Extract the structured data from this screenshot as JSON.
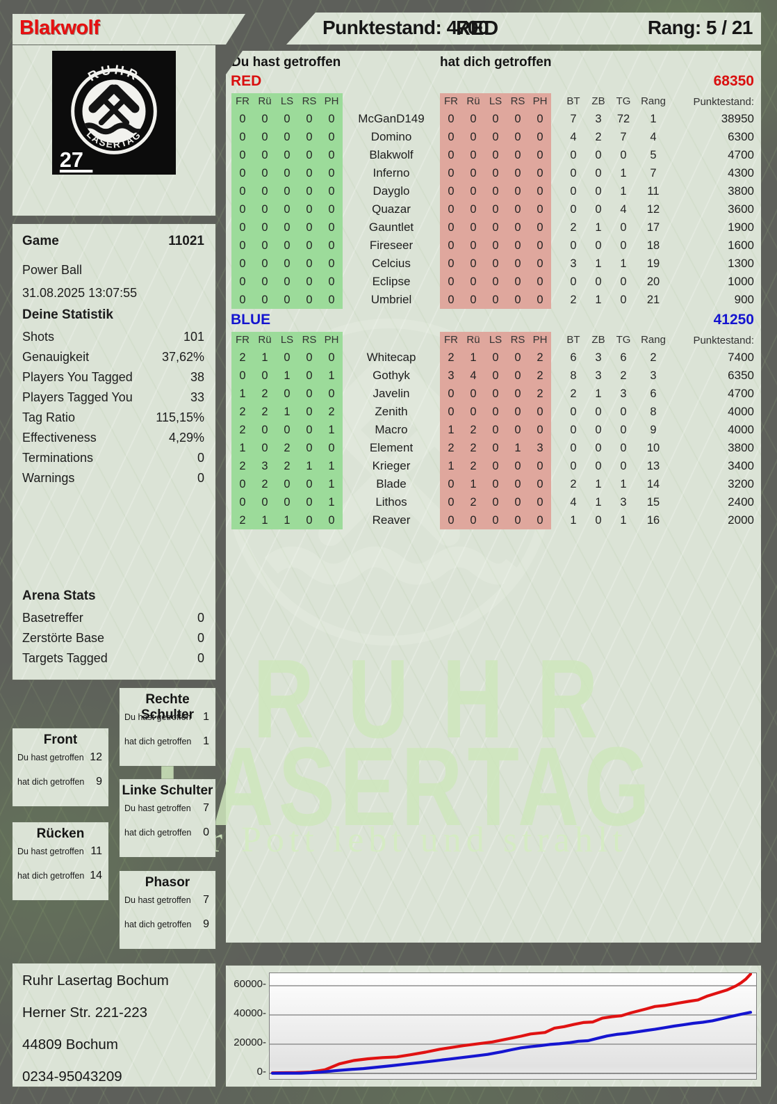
{
  "header": {
    "player": "Blakwolf",
    "score_label": "Punktestand: 4700",
    "team": "RED",
    "rank_label": "Rang: 5 / 21"
  },
  "labels": {
    "you": "Du hast getroffen",
    "them": "hat dich getroffen"
  },
  "logo": {
    "arc_top": "RUHR",
    "arc_bottom": "LASERTAG",
    "number": "27"
  },
  "game": {
    "label": "Game",
    "id": "11021",
    "mode": "Power Ball",
    "datetime": "31.08.2025 13:07:55"
  },
  "your_stats": {
    "title": "Deine Statistik",
    "rows": [
      {
        "label": "Shots",
        "value": "101"
      },
      {
        "label": "Genauigkeit",
        "value": "37,62%"
      },
      {
        "label": "Players You Tagged",
        "value": "38"
      },
      {
        "label": "Players Tagged You",
        "value": "33"
      },
      {
        "label": "Tag Ratio",
        "value": "115,15%"
      },
      {
        "label": "Effectiveness",
        "value": "4,29%"
      },
      {
        "label": "Terminations",
        "value": "0"
      },
      {
        "label": "Warnings",
        "value": "0"
      }
    ]
  },
  "arena_stats": {
    "title": "Arena Stats",
    "rows": [
      {
        "label": "Basetreffer",
        "value": "0"
      },
      {
        "label": "Zerstörte Base",
        "value": "0"
      },
      {
        "label": "Targets Tagged",
        "value": "0"
      }
    ]
  },
  "hitboxes": [
    {
      "title": "Front",
      "you": "12",
      "them": "9"
    },
    {
      "title": "Rücken",
      "you": "11",
      "them": "14"
    },
    {
      "title": "Rechte Schulter",
      "you": "1",
      "them": "1"
    },
    {
      "title": "Linke Schulter",
      "you": "7",
      "them": "0"
    },
    {
      "title": "Phasor",
      "you": "7",
      "them": "9"
    }
  ],
  "table": {
    "hit_cols": [
      "FR",
      "Rü",
      "LS",
      "RS",
      "PH"
    ],
    "tail_cols": [
      "BT",
      "ZB",
      "TG",
      "Rang"
    ],
    "score_col": "Punktestand:"
  },
  "teams": [
    {
      "name": "RED",
      "color": "#d90f0f",
      "total": "68350",
      "rows": [
        {
          "you": [
            "0",
            "0",
            "0",
            "0",
            "0"
          ],
          "name": "McGanD149",
          "them": [
            "0",
            "0",
            "0",
            "0",
            "0"
          ],
          "tail": [
            "7",
            "3",
            "72",
            "1"
          ],
          "score": "38950"
        },
        {
          "you": [
            "0",
            "0",
            "0",
            "0",
            "0"
          ],
          "name": "Domino",
          "them": [
            "0",
            "0",
            "0",
            "0",
            "0"
          ],
          "tail": [
            "4",
            "2",
            "7",
            "4"
          ],
          "score": "6300"
        },
        {
          "you": [
            "0",
            "0",
            "0",
            "0",
            "0"
          ],
          "name": "Blakwolf",
          "them": [
            "0",
            "0",
            "0",
            "0",
            "0"
          ],
          "tail": [
            "0",
            "0",
            "0",
            "5"
          ],
          "score": "4700"
        },
        {
          "you": [
            "0",
            "0",
            "0",
            "0",
            "0"
          ],
          "name": "Inferno",
          "them": [
            "0",
            "0",
            "0",
            "0",
            "0"
          ],
          "tail": [
            "0",
            "0",
            "1",
            "7"
          ],
          "score": "4300"
        },
        {
          "you": [
            "0",
            "0",
            "0",
            "0",
            "0"
          ],
          "name": "Dayglo",
          "them": [
            "0",
            "0",
            "0",
            "0",
            "0"
          ],
          "tail": [
            "0",
            "0",
            "1",
            "11"
          ],
          "score": "3800"
        },
        {
          "you": [
            "0",
            "0",
            "0",
            "0",
            "0"
          ],
          "name": "Quazar",
          "them": [
            "0",
            "0",
            "0",
            "0",
            "0"
          ],
          "tail": [
            "0",
            "0",
            "4",
            "12"
          ],
          "score": "3600"
        },
        {
          "you": [
            "0",
            "0",
            "0",
            "0",
            "0"
          ],
          "name": "Gauntlet",
          "them": [
            "0",
            "0",
            "0",
            "0",
            "0"
          ],
          "tail": [
            "2",
            "1",
            "0",
            "17"
          ],
          "score": "1900"
        },
        {
          "you": [
            "0",
            "0",
            "0",
            "0",
            "0"
          ],
          "name": "Fireseer",
          "them": [
            "0",
            "0",
            "0",
            "0",
            "0"
          ],
          "tail": [
            "0",
            "0",
            "0",
            "18"
          ],
          "score": "1600"
        },
        {
          "you": [
            "0",
            "0",
            "0",
            "0",
            "0"
          ],
          "name": "Celcius",
          "them": [
            "0",
            "0",
            "0",
            "0",
            "0"
          ],
          "tail": [
            "3",
            "1",
            "1",
            "19"
          ],
          "score": "1300"
        },
        {
          "you": [
            "0",
            "0",
            "0",
            "0",
            "0"
          ],
          "name": "Eclipse",
          "them": [
            "0",
            "0",
            "0",
            "0",
            "0"
          ],
          "tail": [
            "0",
            "0",
            "0",
            "20"
          ],
          "score": "1000"
        },
        {
          "you": [
            "0",
            "0",
            "0",
            "0",
            "0"
          ],
          "name": "Umbriel",
          "them": [
            "0",
            "0",
            "0",
            "0",
            "0"
          ],
          "tail": [
            "2",
            "1",
            "0",
            "21"
          ],
          "score": "900"
        }
      ]
    },
    {
      "name": "BLUE",
      "color": "#1414cf",
      "total": "41250",
      "rows": [
        {
          "you": [
            "2",
            "1",
            "0",
            "0",
            "0"
          ],
          "name": "Whitecap",
          "them": [
            "2",
            "1",
            "0",
            "0",
            "2"
          ],
          "tail": [
            "6",
            "3",
            "6",
            "2"
          ],
          "score": "7400"
        },
        {
          "you": [
            "0",
            "0",
            "1",
            "0",
            "1"
          ],
          "name": "Gothyk",
          "them": [
            "3",
            "4",
            "0",
            "0",
            "2"
          ],
          "tail": [
            "8",
            "3",
            "2",
            "3"
          ],
          "score": "6350"
        },
        {
          "you": [
            "1",
            "2",
            "0",
            "0",
            "0"
          ],
          "name": "Javelin",
          "them": [
            "0",
            "0",
            "0",
            "0",
            "2"
          ],
          "tail": [
            "2",
            "1",
            "3",
            "6"
          ],
          "score": "4700"
        },
        {
          "you": [
            "2",
            "2",
            "1",
            "0",
            "2"
          ],
          "name": "Zenith",
          "them": [
            "0",
            "0",
            "0",
            "0",
            "0"
          ],
          "tail": [
            "0",
            "0",
            "0",
            "8"
          ],
          "score": "4000"
        },
        {
          "you": [
            "2",
            "0",
            "0",
            "0",
            "1"
          ],
          "name": "Macro",
          "them": [
            "1",
            "2",
            "0",
            "0",
            "0"
          ],
          "tail": [
            "0",
            "0",
            "0",
            "9"
          ],
          "score": "4000"
        },
        {
          "you": [
            "1",
            "0",
            "2",
            "0",
            "0"
          ],
          "name": "Element",
          "them": [
            "2",
            "2",
            "0",
            "1",
            "3"
          ],
          "tail": [
            "0",
            "0",
            "0",
            "10"
          ],
          "score": "3800"
        },
        {
          "you": [
            "2",
            "3",
            "2",
            "1",
            "1"
          ],
          "name": "Krieger",
          "them": [
            "1",
            "2",
            "0",
            "0",
            "0"
          ],
          "tail": [
            "0",
            "0",
            "0",
            "13"
          ],
          "score": "3400"
        },
        {
          "you": [
            "0",
            "2",
            "0",
            "0",
            "1"
          ],
          "name": "Blade",
          "them": [
            "0",
            "1",
            "0",
            "0",
            "0"
          ],
          "tail": [
            "2",
            "1",
            "1",
            "14"
          ],
          "score": "3200"
        },
        {
          "you": [
            "0",
            "0",
            "0",
            "0",
            "1"
          ],
          "name": "Lithos",
          "them": [
            "0",
            "2",
            "0",
            "0",
            "0"
          ],
          "tail": [
            "4",
            "1",
            "3",
            "15"
          ],
          "score": "2400"
        },
        {
          "you": [
            "2",
            "1",
            "1",
            "0",
            "0"
          ],
          "name": "Reaver",
          "them": [
            "0",
            "0",
            "0",
            "0",
            "0"
          ],
          "tail": [
            "1",
            "0",
            "1",
            "16"
          ],
          "score": "2000"
        }
      ]
    }
  ],
  "address": {
    "lines": [
      "Ruhr Lasertag Bochum",
      "Herner Str. 221-223",
      "44809 Bochum",
      "0234-95043209"
    ]
  },
  "watermark": {
    "line1": "RUHR",
    "line2": "LASERTAG",
    "tagline": "Der Pott lebt und strahlt"
  },
  "colors": {
    "team_red": "#d90f0f",
    "team_blue": "#1414cf",
    "cell_green": "#9cdb9a",
    "cell_red": "#dfa79d",
    "line_red": "#e01212",
    "line_blue": "#1515d0"
  },
  "chart_data": {
    "type": "line",
    "title": "",
    "xlabel": "",
    "ylabel": "",
    "yticks": [
      0,
      20000,
      40000,
      60000
    ],
    "ylim": [
      0,
      68500
    ],
    "grid": true,
    "legend_position": "none",
    "series": [
      {
        "name": "RED cumulative score",
        "color": "#e01212",
        "final_value": 68350,
        "points": [
          [
            0,
            400
          ],
          [
            5,
            500
          ],
          [
            8,
            900
          ],
          [
            11,
            2500
          ],
          [
            14,
            6500
          ],
          [
            17,
            8800
          ],
          [
            20,
            10000
          ],
          [
            23,
            10800
          ],
          [
            26,
            11300
          ],
          [
            29,
            12800
          ],
          [
            32,
            14500
          ],
          [
            35,
            16500
          ],
          [
            38,
            18000
          ],
          [
            40,
            19000
          ],
          [
            43,
            20300
          ],
          [
            46,
            21500
          ],
          [
            49,
            23500
          ],
          [
            52,
            25500
          ],
          [
            54,
            27000
          ],
          [
            57,
            28000
          ],
          [
            59,
            31000
          ],
          [
            61,
            32000
          ],
          [
            63,
            33500
          ],
          [
            65,
            34800
          ],
          [
            67,
            35200
          ],
          [
            69,
            37800
          ],
          [
            71,
            38800
          ],
          [
            73,
            39500
          ],
          [
            75,
            41500
          ],
          [
            78,
            44000
          ],
          [
            80,
            45800
          ],
          [
            82,
            46500
          ],
          [
            85,
            48200
          ],
          [
            87,
            49300
          ],
          [
            89,
            50300
          ],
          [
            91,
            53000
          ],
          [
            93,
            55000
          ],
          [
            95,
            57000
          ],
          [
            96,
            58500
          ],
          [
            97,
            60000
          ],
          [
            98,
            62000
          ],
          [
            99,
            64500
          ],
          [
            100,
            68000
          ]
        ]
      },
      {
        "name": "BLUE cumulative score",
        "color": "#1515d0",
        "final_value": 41250,
        "points": [
          [
            0,
            100
          ],
          [
            6,
            200
          ],
          [
            10,
            800
          ],
          [
            13,
            1800
          ],
          [
            16,
            2600
          ],
          [
            19,
            3300
          ],
          [
            22,
            4300
          ],
          [
            25,
            5300
          ],
          [
            28,
            6400
          ],
          [
            31,
            7500
          ],
          [
            34,
            8600
          ],
          [
            37,
            9800
          ],
          [
            40,
            11000
          ],
          [
            43,
            12200
          ],
          [
            45,
            13000
          ],
          [
            48,
            14800
          ],
          [
            50,
            16200
          ],
          [
            52,
            17500
          ],
          [
            54,
            18300
          ],
          [
            56,
            19000
          ],
          [
            58,
            19800
          ],
          [
            60,
            20300
          ],
          [
            62,
            21000
          ],
          [
            64,
            22000
          ],
          [
            66,
            22400
          ],
          [
            68,
            24000
          ],
          [
            70,
            25600
          ],
          [
            72,
            26700
          ],
          [
            74,
            27400
          ],
          [
            76,
            28300
          ],
          [
            78,
            29300
          ],
          [
            80,
            30200
          ],
          [
            82,
            31300
          ],
          [
            84,
            32400
          ],
          [
            86,
            33300
          ],
          [
            88,
            34300
          ],
          [
            90,
            35000
          ],
          [
            92,
            36000
          ],
          [
            94,
            37500
          ],
          [
            96,
            39000
          ],
          [
            98,
            40500
          ],
          [
            100,
            41800
          ]
        ]
      }
    ]
  }
}
